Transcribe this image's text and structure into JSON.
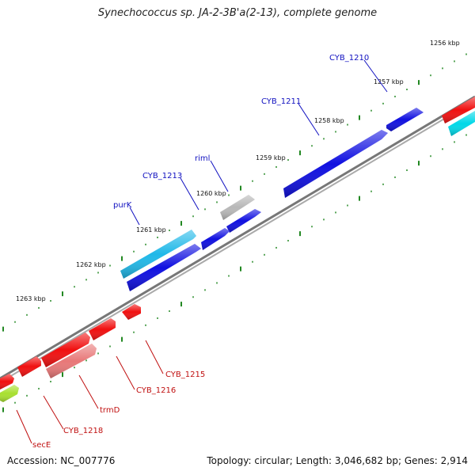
{
  "title": "Synechococcus sp. JA-2-3B'a(2-13), complete genome",
  "footer": {
    "accession": "Accession: NC_007776",
    "stats": "Topology: circular; Length: 3,046,682 bp; Genes: 2,914"
  },
  "colors": {
    "forward_gene": "#1010e0",
    "forward_gene_alt": "#20b8e8",
    "reverse_gene": "#f01010",
    "reverse_gene_alt": "#e87878",
    "neutral_gene": "#b8b8b8",
    "secE_gene": "#a8e030",
    "backbone": "#888888",
    "tick": "#228822",
    "forward_label": "#1010c0",
    "reverse_label": "#c01010"
  },
  "ruler_labels": [
    "1256 kbp",
    "1257 kbp",
    "1258 kbp",
    "1259 kbp",
    "1260 kbp",
    "1261 kbp",
    "1262 kbp",
    "1263 kbp"
  ],
  "gene_labels": {
    "forward": [
      "CYB_1210",
      "CYB_1211",
      "riml",
      "CYB_1213",
      "purK"
    ],
    "reverse": [
      "CYB_1215",
      "CYB_1216",
      "trmD",
      "CYB_1218",
      "secE"
    ]
  }
}
